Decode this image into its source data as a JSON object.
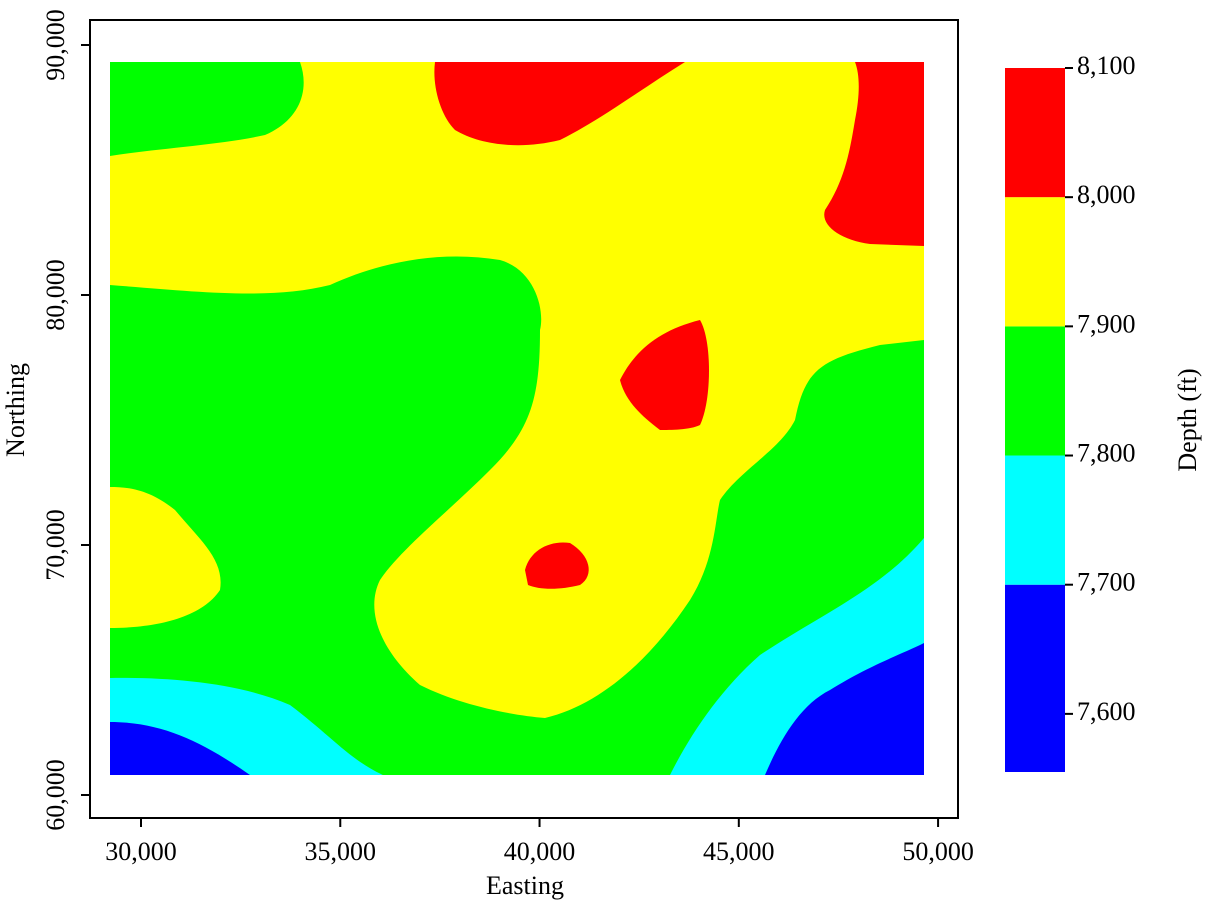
{
  "chart_data": {
    "type": "contour",
    "x_label": "Easting",
    "y_label": "Northing",
    "xlim": [
      28720,
      50500
    ],
    "ylim": [
      59080,
      91000
    ],
    "xticks": [
      {
        "value": 30000,
        "label": "30,000"
      },
      {
        "value": 35000,
        "label": "35,000"
      },
      {
        "value": 40000,
        "label": "40,000"
      },
      {
        "value": 45000,
        "label": "45,000"
      },
      {
        "value": 50000,
        "label": "50,000"
      }
    ],
    "yticks": [
      {
        "value": 60000,
        "label": "60,000"
      },
      {
        "value": 70000,
        "label": "70,000"
      },
      {
        "value": 80000,
        "label": "80,000"
      },
      {
        "value": 90000,
        "label": "90,000"
      }
    ],
    "colorbar": {
      "label": "Depth (ft)",
      "levels": [
        7555,
        7700,
        7800,
        7900,
        8000,
        8100
      ],
      "colors": [
        "#0000ff",
        "#00ffff",
        "#00ff00",
        "#ffff00",
        "#ff0000"
      ],
      "ticks": [
        {
          "value": 7600,
          "label": "7,600"
        },
        {
          "value": 7700,
          "label": "7,700"
        },
        {
          "value": 7800,
          "label": "7,800"
        },
        {
          "value": 7900,
          "label": "7,900"
        },
        {
          "value": 8000,
          "label": "8,000"
        },
        {
          "value": 8100,
          "label": "8,100"
        }
      ]
    }
  }
}
